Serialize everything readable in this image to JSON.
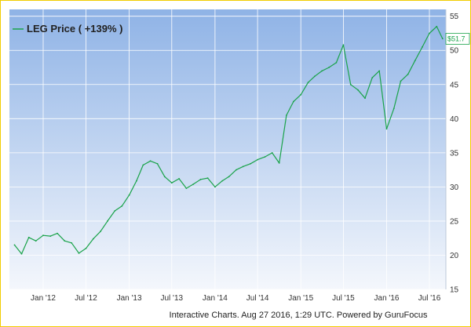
{
  "colors": {
    "line": "#1aa34a",
    "bg_top": "#8fb3e6",
    "bg_bottom": "#f4f7fc",
    "grid": "#ffffff",
    "frame": "#f2cc00"
  },
  "legend": {
    "label": "LEG Price ( +139% )"
  },
  "credit": "Interactive Charts. Aug 27 2016, 1:29 UTC. Powered by GuruFocus",
  "price_tag": "$51.7",
  "chart_data": {
    "type": "line",
    "title": "",
    "xlabel": "",
    "ylabel": "",
    "ylim": [
      15,
      56
    ],
    "y_ticks": [
      15,
      20,
      25,
      30,
      35,
      40,
      45,
      50,
      55
    ],
    "y_axis_side": "right",
    "grid": true,
    "legend_position": "top-left",
    "x_ticks": [
      "Jan '12",
      "Jul '12",
      "Jan '13",
      "Jul '13",
      "Jan '14",
      "Jul '14",
      "Jan '15",
      "Jul '15",
      "Jan '16",
      "Jul '16"
    ],
    "series": [
      {
        "name": "LEG Price ( +139% )",
        "x": [
          "2011-09-01",
          "2011-10-01",
          "2011-11-01",
          "2011-12-01",
          "2012-01-01",
          "2012-02-01",
          "2012-03-01",
          "2012-04-01",
          "2012-05-01",
          "2012-06-01",
          "2012-07-01",
          "2012-08-01",
          "2012-09-01",
          "2012-10-01",
          "2012-11-01",
          "2012-12-01",
          "2013-01-01",
          "2013-02-01",
          "2013-03-01",
          "2013-04-01",
          "2013-05-01",
          "2013-06-01",
          "2013-07-01",
          "2013-08-01",
          "2013-09-01",
          "2013-10-01",
          "2013-11-01",
          "2013-12-01",
          "2014-01-01",
          "2014-02-01",
          "2014-03-01",
          "2014-04-01",
          "2014-05-01",
          "2014-06-01",
          "2014-07-01",
          "2014-08-01",
          "2014-09-01",
          "2014-10-01",
          "2014-11-01",
          "2014-12-01",
          "2015-01-01",
          "2015-02-01",
          "2015-03-01",
          "2015-04-01",
          "2015-05-01",
          "2015-06-01",
          "2015-07-01",
          "2015-08-01",
          "2015-09-01",
          "2015-10-01",
          "2015-11-01",
          "2015-12-01",
          "2016-01-01",
          "2016-02-01",
          "2016-03-01",
          "2016-04-01",
          "2016-05-01",
          "2016-06-01",
          "2016-07-01",
          "2016-08-01",
          "2016-08-26"
        ],
        "values": [
          21.5,
          20.2,
          22.6,
          22.1,
          22.9,
          22.8,
          23.2,
          22.1,
          21.8,
          20.3,
          21.0,
          22.4,
          23.5,
          25.0,
          26.5,
          27.2,
          28.8,
          30.9,
          33.2,
          33.8,
          33.4,
          31.5,
          30.6,
          31.2,
          29.8,
          30.4,
          31.1,
          31.3,
          30.0,
          30.9,
          31.5,
          32.5,
          33.0,
          33.4,
          34.0,
          34.4,
          35.0,
          33.5,
          40.5,
          42.5,
          43.5,
          45.3,
          46.2,
          47.0,
          47.5,
          48.2,
          50.8,
          45.0,
          44.2,
          43.0,
          46.0,
          47.0,
          38.5,
          41.5,
          45.5,
          46.5,
          48.5,
          50.5,
          52.5,
          53.5,
          51.7
        ]
      }
    ]
  }
}
